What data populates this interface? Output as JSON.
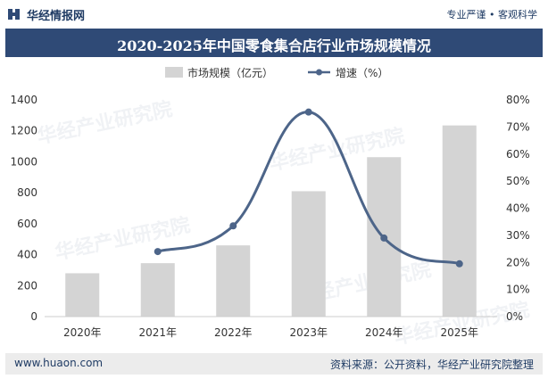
{
  "header": {
    "brand": "华经情报网",
    "slogan": "专业严谨 • 客观科学"
  },
  "chart_data": {
    "type": "bar",
    "title": "2020-2025年中国零食集合店行业市场规模情况",
    "categories": [
      "2020年",
      "2021年",
      "2022年",
      "2023年",
      "2024年",
      "2025年"
    ],
    "series": [
      {
        "name": "市场规模（亿元）",
        "type": "bar",
        "axis": "left",
        "values": [
          280,
          345,
          460,
          810,
          1030,
          1235
        ],
        "color": "#d4d4d4"
      },
      {
        "name": "增速（%）",
        "type": "line",
        "axis": "right",
        "values": [
          null,
          24,
          33.5,
          75.5,
          29,
          19.5
        ],
        "color": "#4d6589"
      }
    ],
    "y_left": {
      "min": 0,
      "max": 1400,
      "ticks": [
        "0",
        "200",
        "400",
        "600",
        "800",
        "1000",
        "1200",
        "1400"
      ]
    },
    "y_right": {
      "min": 0,
      "max": 80,
      "ticks": [
        "0%",
        "10%",
        "20%",
        "30%",
        "40%",
        "50%",
        "60%",
        "70%",
        "80%"
      ]
    },
    "grid": false,
    "legend_position": "top-center"
  },
  "footer": {
    "url": "www.huaon.com",
    "source": "资料来源：公开资料，华经产业研究院整理"
  },
  "watermark": {
    "text": "华经产业研究院",
    "sub": "www.huaon.com"
  }
}
